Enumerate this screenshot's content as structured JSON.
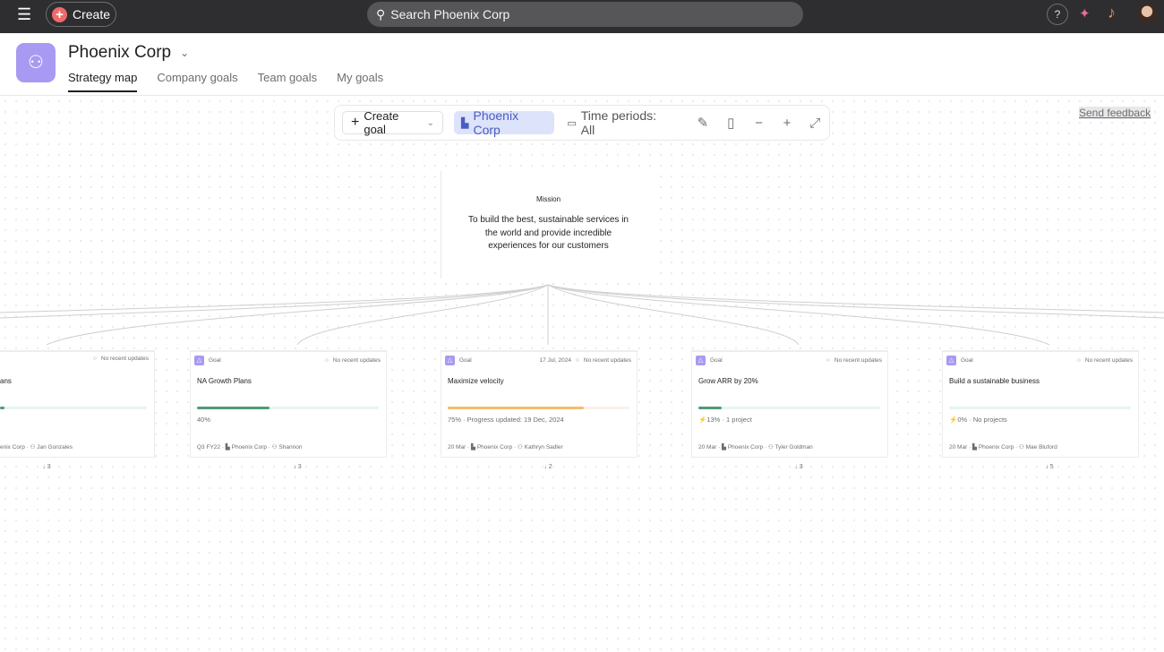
{
  "topbar": {
    "create_label": "Create",
    "search_placeholder": "Search Phoenix Corp",
    "help": "?"
  },
  "header": {
    "org_name": "Phoenix Corp",
    "tabs": [
      {
        "label": "Strategy map",
        "active": true
      },
      {
        "label": "Company goals"
      },
      {
        "label": "Team goals"
      },
      {
        "label": "My goals"
      }
    ]
  },
  "toolbar": {
    "create_goal": "Create goal",
    "team": "Phoenix Corp",
    "time_periods": "Time periods: All"
  },
  "send_feedback": "Send feedback",
  "mission": {
    "label": "Mission",
    "text": "To build the best, sustainable services in the world and provide incredible experiences for our customers"
  },
  "goals": [
    {
      "type": "Goal",
      "title": "ans",
      "date": "",
      "status": "No recent updates",
      "progress": 3,
      "color": "#4f9a77",
      "stat": "",
      "period": "",
      "team": "enix Corp",
      "owner": "Jan Gonzales",
      "children": "3"
    },
    {
      "type": "Goal",
      "title": "NA Growth Plans",
      "date": "",
      "status": "No recent updates",
      "progress": 40,
      "color": "#4f9a77",
      "stat": "40%",
      "period": "Q3 FY22",
      "team": "Phoenix Corp",
      "owner": "Shannon",
      "children": "3"
    },
    {
      "type": "Goal",
      "title": "Maximize velocity",
      "date": "17 Jul, 2024",
      "status": "No recent updates",
      "progress": 75,
      "color": "#f1bd6c",
      "track": "#fdf0e6",
      "stat": "75%  ·  Progress updated: 19 Dec, 2024",
      "period": "20 Mar",
      "team": "Phoenix Corp",
      "owner": "Kathryn Sadler",
      "children": "2"
    },
    {
      "type": "Goal",
      "title": "Grow ARR by 20%",
      "date": "",
      "status": "No recent updates",
      "progress": 13,
      "color": "#4f9a77",
      "stat": "13%  ·  1 project",
      "bolt": true,
      "period": "20 Mar",
      "team": "Phoenix Corp",
      "owner": "Tyler Goldman",
      "children": "3"
    },
    {
      "type": "Goal",
      "title": "Build a sustainable business",
      "date": "",
      "status": "No recent updates",
      "progress": 0,
      "color": "#4f9a77",
      "stat": "0%  ·  No projects",
      "bolt": true,
      "period": "20 Mar",
      "team": "Phoenix Corp",
      "owner": "Mae Bluford",
      "children": "5"
    }
  ]
}
